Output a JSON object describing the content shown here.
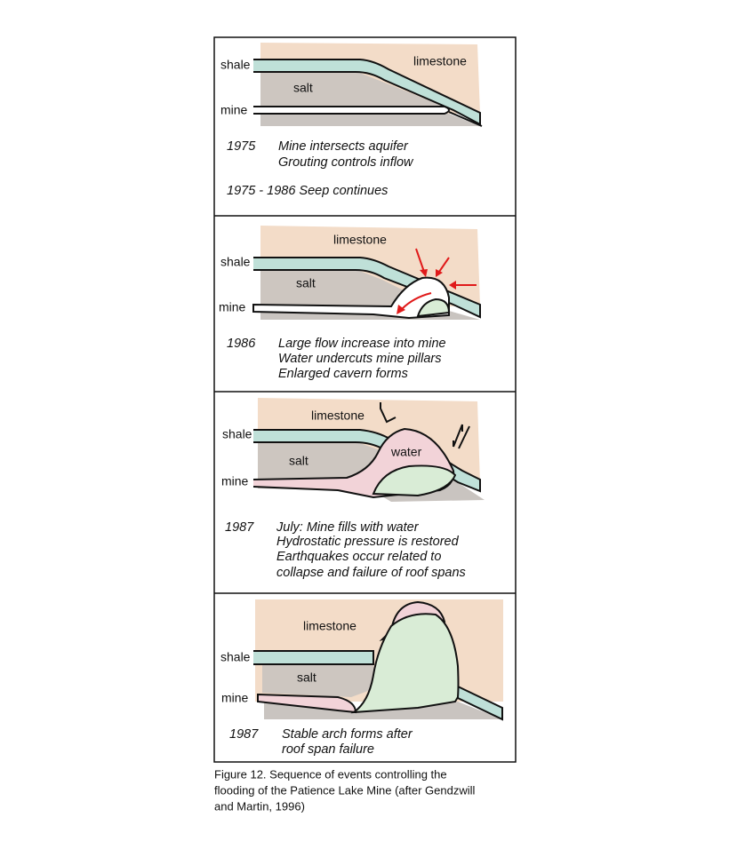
{
  "panels": [
    {
      "layer_labels": [
        "shale",
        "limestone",
        "salt",
        "mine"
      ],
      "year": "1975",
      "notes": [
        "Mine intersects aquifer",
        "Grouting controls inflow"
      ],
      "extra_note": "1975 - 1986 Seep continues"
    },
    {
      "layer_labels": [
        "limestone",
        "shale",
        "salt",
        "mine"
      ],
      "year": "1986",
      "notes": [
        "Large flow increase into mine",
        "Water undercuts mine pillars",
        "Enlarged cavern forms"
      ]
    },
    {
      "layer_labels": [
        "limestone",
        "shale",
        "water",
        "salt",
        "mine"
      ],
      "year": "1987",
      "notes": [
        "July: Mine fills with water",
        "Hydrostatic pressure is restored",
        "Earthquakes occur related to",
        "collapse and failure of roof spans"
      ]
    },
    {
      "layer_labels": [
        "limestone",
        "shale",
        "salt",
        "mine"
      ],
      "year": "1987",
      "notes": [
        "Stable arch forms after",
        "roof span failure"
      ]
    }
  ],
  "caption": [
    "Figure 12. Sequence of events controlling the",
    "flooding of the Patience Lake Mine (after Gendzwill",
    "and Martin, 1996)"
  ]
}
